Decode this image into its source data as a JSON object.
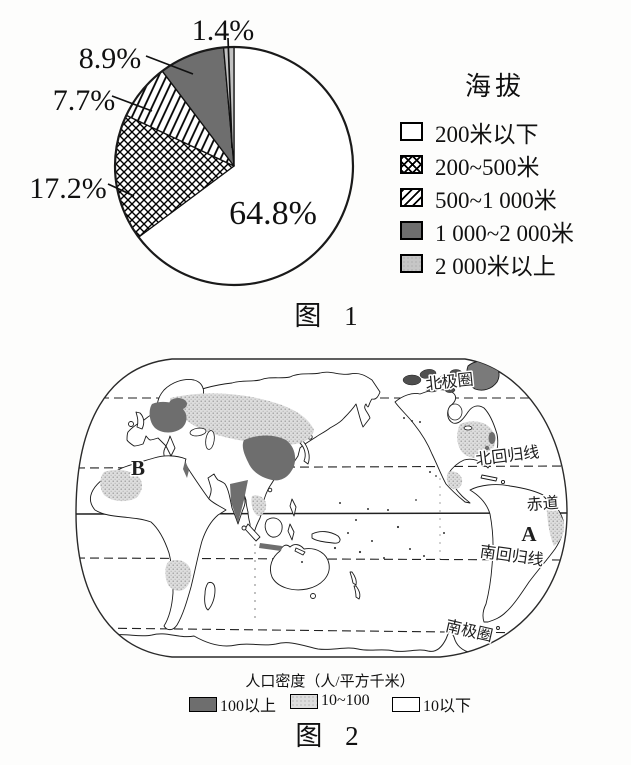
{
  "figure1": {
    "caption": "图 1",
    "legend_title": "海拔"
  },
  "chart_data": {
    "type": "pie",
    "title": "海拔",
    "legend_position": "right",
    "start_at_12_oclock_clockwise": true,
    "slices": [
      {
        "label": "200米以下",
        "value": 64.8,
        "pct": "64.8%",
        "style": "white"
      },
      {
        "label": "200~500米",
        "value": 17.2,
        "pct": "17.2%",
        "style": "crosshatch"
      },
      {
        "label": "500~1 000米",
        "value": 7.7,
        "pct": "7.7%",
        "style": "diagonal-stripes"
      },
      {
        "label": "1 000~2 000米",
        "value": 8.9,
        "pct": "8.9%",
        "style": "dark-gray"
      },
      {
        "label": "2 000米以上",
        "value": 1.4,
        "pct": "1.4%",
        "style": "light-gray"
      }
    ]
  },
  "figure2": {
    "caption": "图 2",
    "map_labels": {
      "arctic_circle": "北极圈",
      "tropic_of_cancer": "北回归线",
      "equator": "赤道",
      "tropic_of_capricorn": "南回归线",
      "antarctic_circle": "南极圈",
      "point_a": "A",
      "point_b": "B"
    },
    "legend_title": "人口密度（人/平方千米）",
    "legend_items": [
      {
        "label": "100以上",
        "style": "dark-gray"
      },
      {
        "label": "10~100",
        "style": "light-stipple"
      },
      {
        "label": "10以下",
        "style": "white"
      }
    ]
  },
  "colors": {
    "dark_gray": "#6e6e6e",
    "light_gray": "#c6c6c6",
    "ink": "#1a1a1a"
  }
}
